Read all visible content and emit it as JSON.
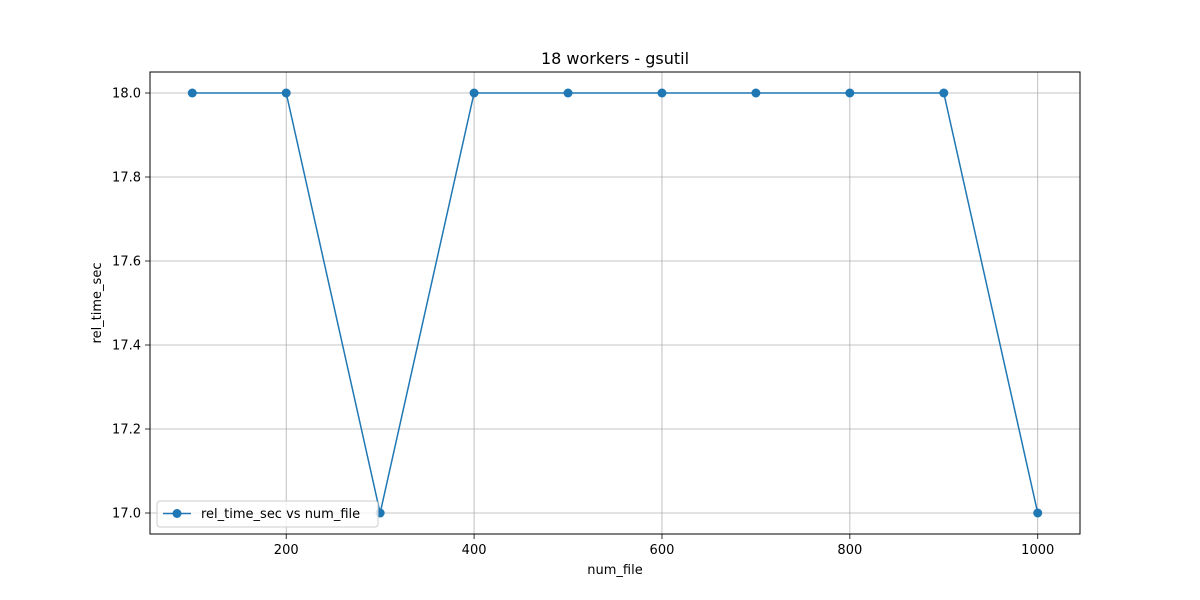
{
  "chart_data": {
    "type": "line",
    "title": "18 workers - gsutil",
    "xlabel": "num_file",
    "ylabel": "rel_time_sec",
    "xlim": [
      55,
      1045
    ],
    "ylim": [
      16.95,
      18.05
    ],
    "xticks": [
      200,
      400,
      600,
      800,
      1000
    ],
    "xtick_labels": [
      "200",
      "400",
      "600",
      "800",
      "1000"
    ],
    "yticks": [
      17.0,
      17.2,
      17.4,
      17.6,
      17.8,
      18.0
    ],
    "ytick_labels": [
      "17.0",
      "17.2",
      "17.4",
      "17.6",
      "17.8",
      "18.0"
    ],
    "grid": true,
    "legend_position": "lower-left",
    "series": [
      {
        "name": "rel_time_sec vs num_file",
        "color": "#1f77b4",
        "marker": "circle",
        "x": [
          100,
          200,
          300,
          400,
          500,
          600,
          700,
          800,
          900,
          1000
        ],
        "y": [
          18.0,
          18.0,
          17.0,
          18.0,
          18.0,
          18.0,
          18.0,
          18.0,
          18.0,
          17.0
        ]
      }
    ]
  }
}
